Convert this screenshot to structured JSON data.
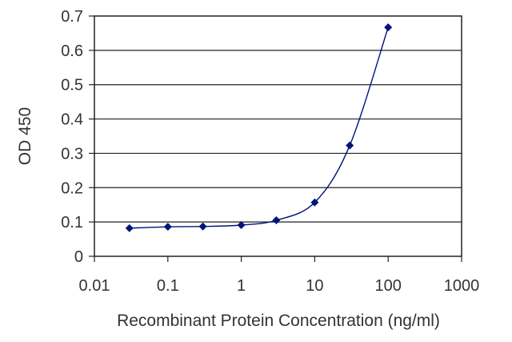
{
  "chart_data": {
    "type": "scatter",
    "title": "",
    "xlabel": "Recombinant Protein Concentration (ng/ml)",
    "ylabel": "OD 450",
    "x_scale": "log",
    "xlim": [
      0.01,
      1000
    ],
    "ylim": [
      0,
      0.7
    ],
    "x_ticks": [
      "0.01",
      "0.1",
      "1",
      "10",
      "100",
      "1000"
    ],
    "y_ticks": [
      "0",
      "0.1",
      "0.2",
      "0.3",
      "0.4",
      "0.5",
      "0.6",
      "0.7"
    ],
    "grid": "horizontal",
    "legend": "none",
    "series": [
      {
        "x": [
          0.03,
          0.1,
          0.3,
          1,
          3,
          10,
          30,
          100
        ],
        "y": [
          0.082,
          0.086,
          0.087,
          0.091,
          0.105,
          0.157,
          0.323,
          0.667
        ],
        "color": "#00137a",
        "marker": "diamond",
        "fit_curve": true
      }
    ]
  }
}
